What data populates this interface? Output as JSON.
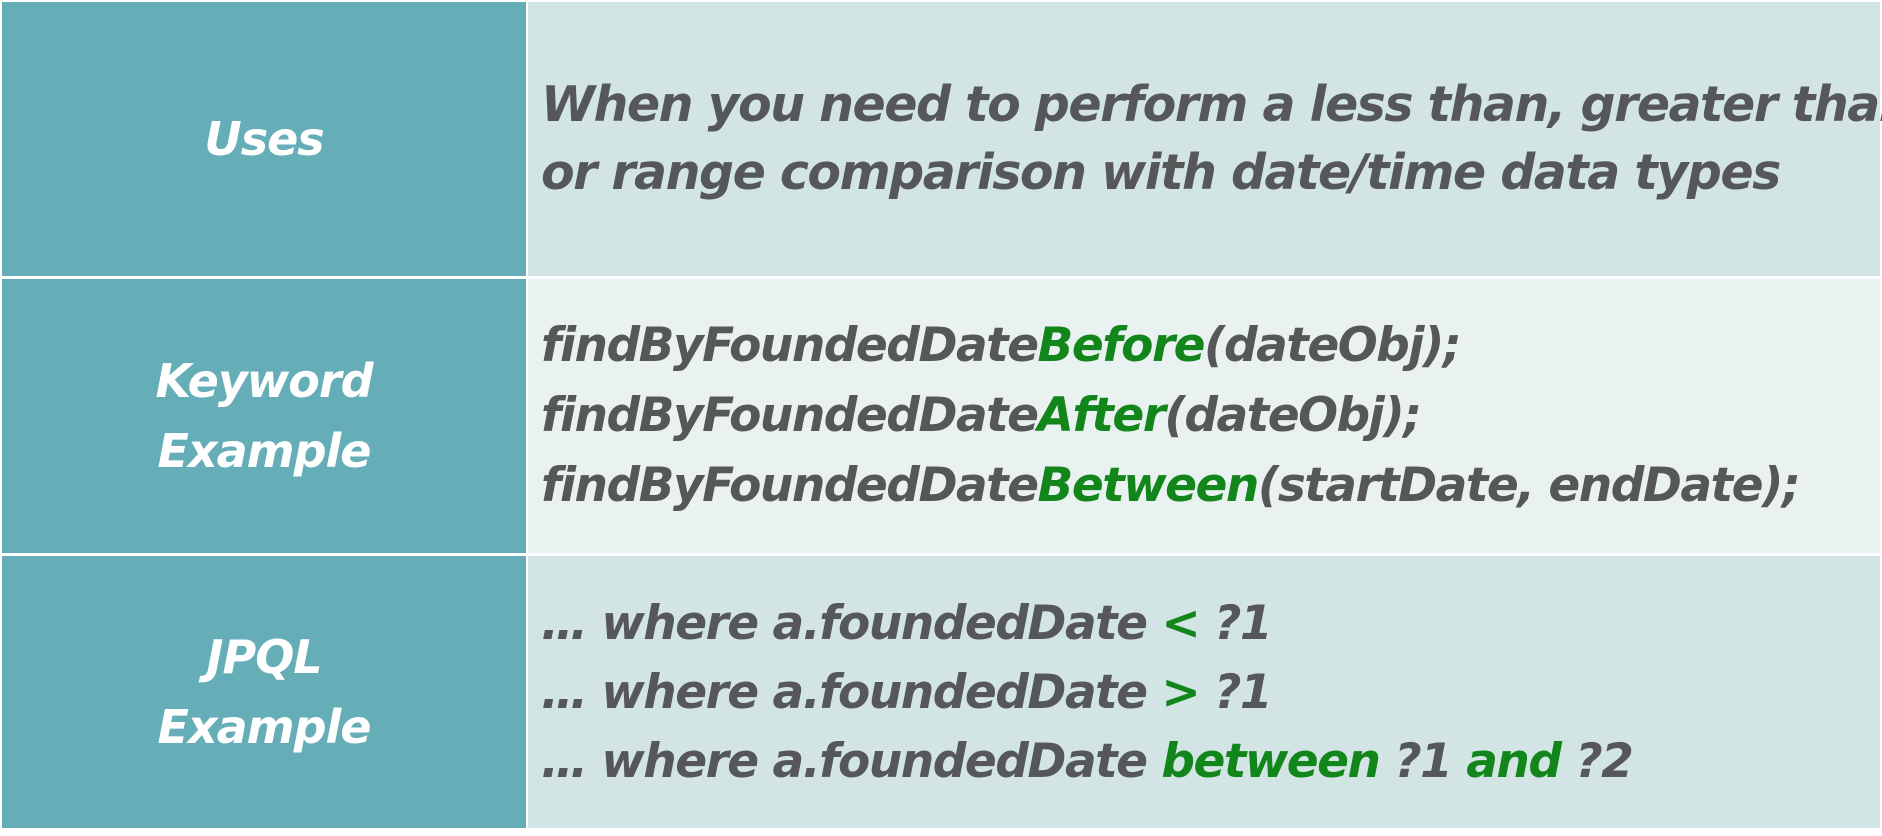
{
  "rows": {
    "uses": {
      "label": "Uses",
      "lines": [
        "When you need to perform a less than, greater than",
        "or range comparison with date/time data types"
      ]
    },
    "keyword": {
      "label_lines": [
        "Keyword",
        "Example"
      ],
      "lines": [
        {
          "prefix": "findByFoundedDate",
          "keyword": "Before",
          "suffix": "(dateObj);"
        },
        {
          "prefix": "findByFoundedDate",
          "keyword": "After",
          "suffix": "(dateObj);"
        },
        {
          "prefix": "findByFoundedDate",
          "keyword": "Between",
          "suffix": "(startDate, endDate);"
        }
      ]
    },
    "jpql": {
      "label_lines": [
        "JPQL",
        "Example"
      ],
      "lines": [
        {
          "prefix": "… where a.foundedDate ",
          "op": "<",
          "rest": " ?1"
        },
        {
          "prefix": "… where a.foundedDate ",
          "op": ">",
          "rest": " ?1"
        },
        {
          "prefix": "… where a.foundedDate ",
          "op": "between",
          "mid": " ?1 ",
          "op2": "and",
          "rest": " ?2"
        }
      ]
    }
  },
  "colors": {
    "label_bg": "#66aeb7",
    "content_bg": "#d3e4e5",
    "content_bg_alt": "#e9f1f1",
    "text": "#555759",
    "highlight": "#12861a"
  }
}
